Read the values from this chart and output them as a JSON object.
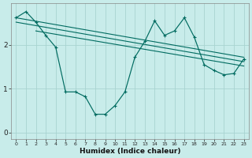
{
  "xlabel": "Humidex (Indice chaleur)",
  "background_color": "#c8ecea",
  "grid_color": "#a8d4d0",
  "line_color": "#006b60",
  "x_ticks": [
    0,
    1,
    2,
    3,
    4,
    5,
    6,
    7,
    8,
    9,
    10,
    11,
    12,
    13,
    14,
    15,
    16,
    17,
    18,
    19,
    20,
    21,
    22,
    23
  ],
  "y_ticks": [
    0,
    1,
    2
  ],
  "ylim": [
    -0.15,
    2.95
  ],
  "xlim": [
    -0.5,
    23.5
  ],
  "main_x": [
    0,
    1,
    2,
    3,
    4,
    5,
    6,
    7,
    8,
    9,
    10,
    11,
    12,
    13,
    14,
    15,
    16,
    17,
    18,
    19,
    20,
    21,
    22,
    23
  ],
  "main_y": [
    2.62,
    2.76,
    2.52,
    2.22,
    1.95,
    0.93,
    0.93,
    0.82,
    0.42,
    0.42,
    0.62,
    0.93,
    1.72,
    2.08,
    2.55,
    2.22,
    2.32,
    2.62,
    2.18,
    1.55,
    1.42,
    1.32,
    1.35,
    1.68
  ],
  "trend_lines": [
    {
      "x": [
        0,
        23
      ],
      "y": [
        2.62,
        1.72
      ]
    },
    {
      "x": [
        0,
        23
      ],
      "y": [
        2.52,
        1.62
      ]
    },
    {
      "x": [
        2,
        23
      ],
      "y": [
        2.32,
        1.52
      ]
    }
  ]
}
